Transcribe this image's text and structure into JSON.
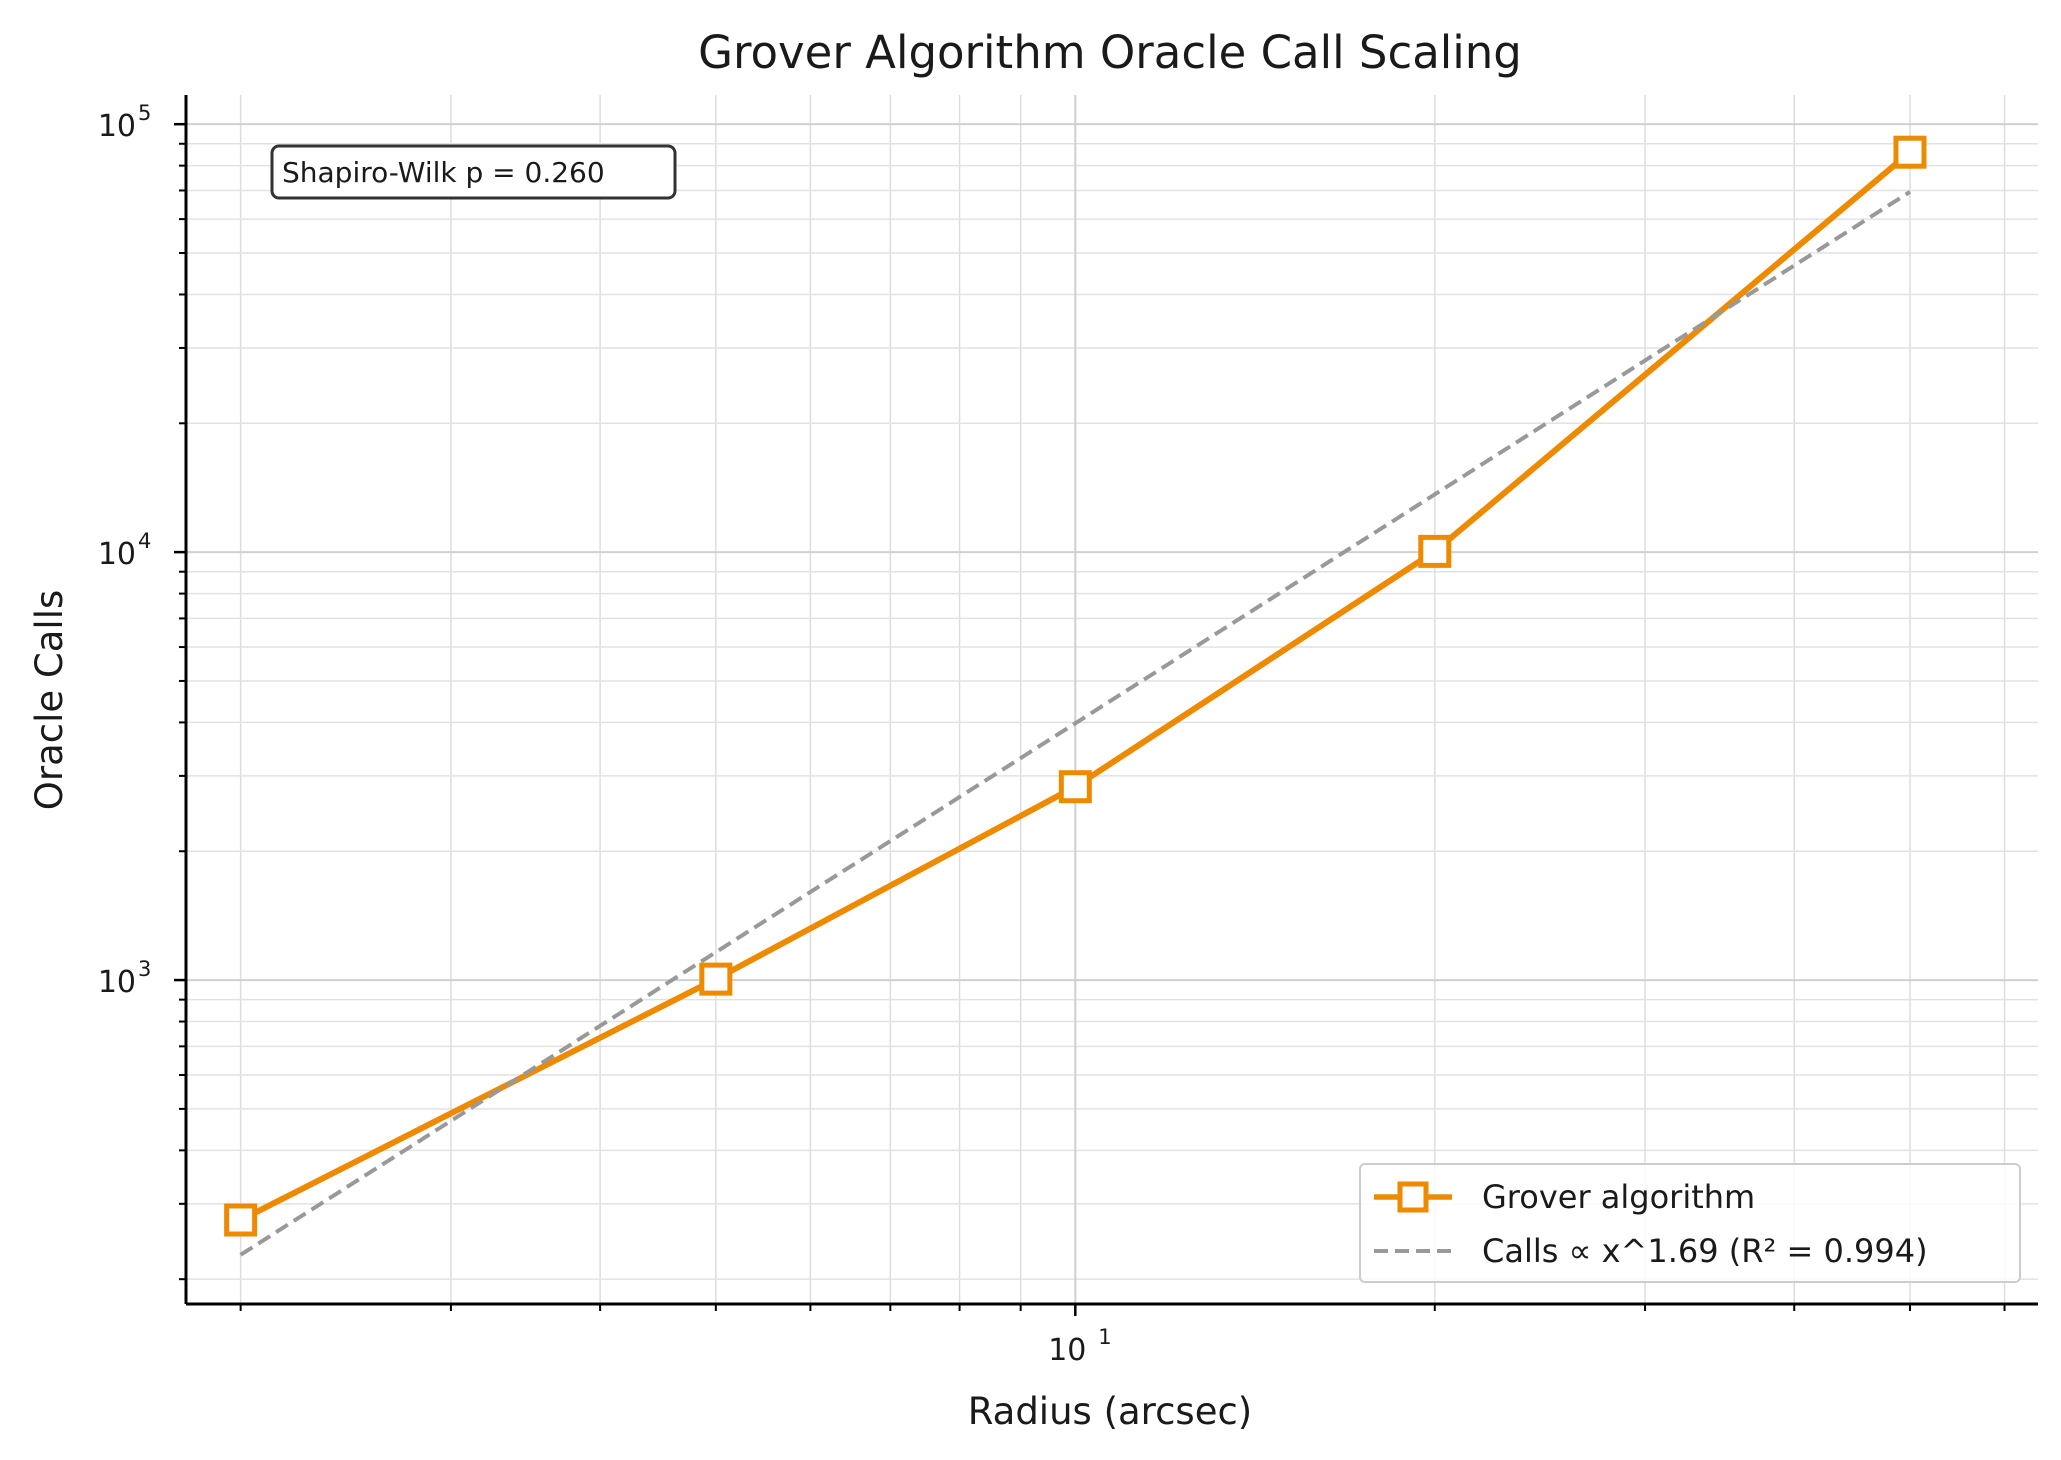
{
  "chart_data": {
    "type": "line",
    "title": "Grover Algorithm Oracle Call Scaling",
    "xlabel": "Radius (arcsec)",
    "ylabel": "Oracle Calls",
    "xscale": "log",
    "yscale": "log",
    "xlim": [
      1.8,
      64
    ],
    "ylim": [
      175,
      117000
    ],
    "x_ticks": [
      {
        "base": "10",
        "exp": "1",
        "value": 10
      }
    ],
    "y_ticks": [
      {
        "base": "10",
        "exp": "3",
        "value": 1000
      },
      {
        "base": "10",
        "exp": "4",
        "value": 10000
      },
      {
        "base": "10",
        "exp": "5",
        "value": 100000
      }
    ],
    "grid": true,
    "series": [
      {
        "name": "Grover algorithm",
        "x": [
          2,
          5,
          10,
          20,
          50
        ],
        "y": [
          275,
          1005,
          2830,
          10040,
          86000
        ],
        "color": "#EE8A00",
        "marker": "square-open",
        "style": "solid"
      },
      {
        "name": "Calls ∝ x^1.69 (R² = 0.994)",
        "x": [
          2,
          50
        ],
        "y": [
          228,
          69500
        ],
        "color": "#999999",
        "style": "dashed"
      }
    ],
    "legend_position": "bottom-right",
    "annotation": {
      "text": "Shapiro-Wilk p = 0.260",
      "position": "top-left"
    }
  }
}
